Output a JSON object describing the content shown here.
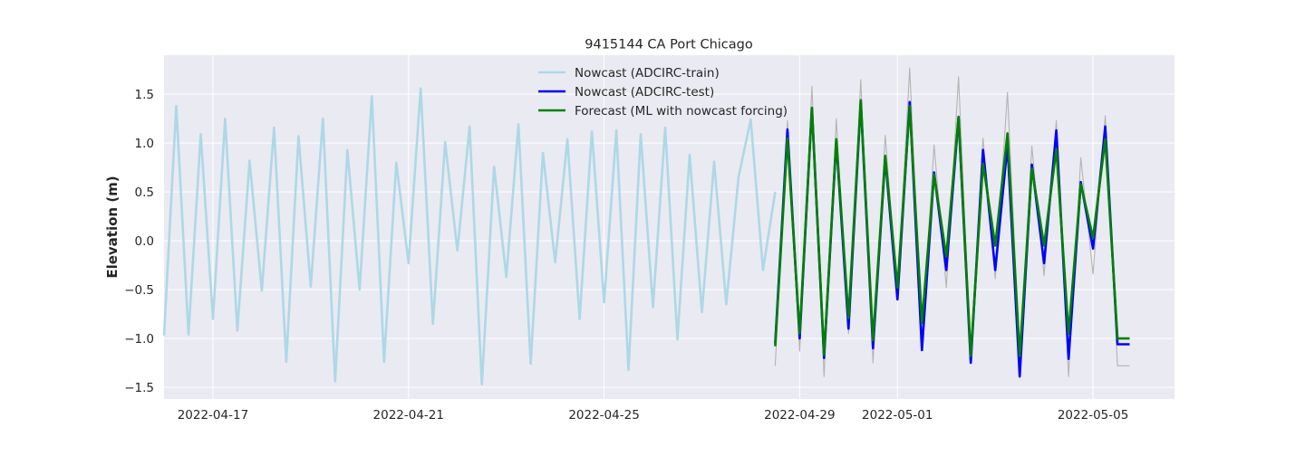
{
  "chart_data": {
    "type": "line",
    "title": "9415144 CA Port Chicago",
    "xlabel": "",
    "ylabel": "Elevation (m)",
    "xlim": [
      "2022-04-16T00:00",
      "2022-05-06T16:00"
    ],
    "ylim": [
      -1.62,
      1.9
    ],
    "grid": true,
    "legend_position": "top-center",
    "x_ticks": [
      "2022-04-17",
      "2022-04-21",
      "2022-04-25",
      "2022-04-29",
      "2022-05-01",
      "2022-05-05"
    ],
    "y_ticks": [
      "−1.5",
      "−1.0",
      "−0.5",
      "0.0",
      "0.5",
      "1.0",
      "1.5"
    ],
    "y_tick_values": [
      -1.5,
      -1.0,
      -0.5,
      0.0,
      0.5,
      1.0,
      1.5
    ],
    "legend": [
      {
        "label": "Nowcast (ADCIRC-train)",
        "color": "#add8e6"
      },
      {
        "label": "Nowcast (ADCIRC-test)",
        "color": "#0000ff"
      },
      {
        "label": "Forecast (ML with nowcast forcing)",
        "color": "#008000"
      }
    ],
    "series": [
      {
        "name": "Nowcast (ADCIRC-train)",
        "color": "#add8e6",
        "x": [
          "2022-04-16T00:00",
          "2022-04-16T06:00",
          "2022-04-16T12:00",
          "2022-04-16T18:00",
          "2022-04-17T00:00",
          "2022-04-17T06:00",
          "2022-04-17T12:00",
          "2022-04-17T18:00",
          "2022-04-18T00:00",
          "2022-04-18T06:00",
          "2022-04-18T12:00",
          "2022-04-18T18:00",
          "2022-04-19T00:00",
          "2022-04-19T06:00",
          "2022-04-19T12:00",
          "2022-04-19T18:00",
          "2022-04-20T00:00",
          "2022-04-20T06:00",
          "2022-04-20T12:00",
          "2022-04-20T18:00",
          "2022-04-21T00:00",
          "2022-04-21T06:00",
          "2022-04-21T12:00",
          "2022-04-21T18:00",
          "2022-04-22T00:00",
          "2022-04-22T06:00",
          "2022-04-22T12:00",
          "2022-04-22T18:00",
          "2022-04-23T00:00",
          "2022-04-23T06:00",
          "2022-04-23T12:00",
          "2022-04-23T18:00",
          "2022-04-24T00:00",
          "2022-04-24T06:00",
          "2022-04-24T12:00",
          "2022-04-24T18:00",
          "2022-04-25T00:00",
          "2022-04-25T06:00",
          "2022-04-25T12:00",
          "2022-04-25T18:00",
          "2022-04-26T00:00",
          "2022-04-26T06:00",
          "2022-04-26T12:00",
          "2022-04-26T18:00",
          "2022-04-27T00:00",
          "2022-04-27T06:00",
          "2022-04-27T12:00",
          "2022-04-27T18:00",
          "2022-04-28T00:00",
          "2022-04-28T06:00",
          "2022-04-28T12:00"
        ],
        "y": [
          -0.97,
          1.38,
          -0.96,
          1.09,
          -0.8,
          1.25,
          -0.92,
          0.82,
          -0.51,
          1.16,
          -1.24,
          1.07,
          -0.47,
          1.25,
          -1.44,
          0.93,
          -0.5,
          1.48,
          -1.24,
          0.8,
          -0.23,
          1.56,
          -0.85,
          1.01,
          -0.1,
          1.17,
          -1.47,
          0.76,
          -0.37,
          1.19,
          -1.26,
          0.9,
          -0.22,
          1.04,
          -0.8,
          1.12,
          -0.63,
          1.13,
          -1.32,
          1.09,
          -0.68,
          1.16,
          -1.01,
          0.88,
          -0.73,
          0.81,
          -0.65,
          0.65,
          1.24,
          -0.3,
          0.5
        ]
      },
      {
        "name": "Nowcast (ADCIRC-test)",
        "color": "#0000ff",
        "x": [
          "2022-04-28T12:00",
          "2022-04-28T18:00",
          "2022-04-29T00:00",
          "2022-04-29T06:00",
          "2022-04-29T12:00",
          "2022-04-29T18:00",
          "2022-04-30T00:00",
          "2022-04-30T06:00",
          "2022-04-30T12:00",
          "2022-04-30T18:00",
          "2022-05-01T00:00",
          "2022-05-01T06:00",
          "2022-05-01T12:00",
          "2022-05-01T18:00",
          "2022-05-02T00:00",
          "2022-05-02T06:00",
          "2022-05-02T12:00",
          "2022-05-02T18:00",
          "2022-05-03T00:00",
          "2022-05-03T06:00",
          "2022-05-03T12:00",
          "2022-05-03T18:00",
          "2022-05-04T00:00",
          "2022-05-04T06:00",
          "2022-05-04T12:00",
          "2022-05-04T18:00",
          "2022-05-05T00:00",
          "2022-05-05T06:00",
          "2022-05-05T12:00",
          "2022-05-05T18:00"
        ],
        "y": [
          -1.05,
          1.14,
          -1.0,
          1.36,
          -1.2,
          1.02,
          -0.9,
          1.42,
          -1.1,
          0.85,
          -0.6,
          1.42,
          -1.12,
          0.7,
          -0.3,
          1.26,
          -1.25,
          0.93,
          -0.3,
          0.98,
          -1.39,
          0.78,
          -0.23,
          1.13,
          -1.21,
          0.6,
          -0.08,
          1.17,
          -1.06,
          -1.06
        ]
      },
      {
        "name": "Forecast (ML with nowcast forcing)",
        "color": "#008000",
        "x": [
          "2022-04-28T12:00",
          "2022-04-28T18:00",
          "2022-04-29T00:00",
          "2022-04-29T06:00",
          "2022-04-29T12:00",
          "2022-04-29T18:00",
          "2022-04-30T00:00",
          "2022-04-30T06:00",
          "2022-04-30T12:00",
          "2022-04-30T18:00",
          "2022-05-01T00:00",
          "2022-05-01T06:00",
          "2022-05-01T12:00",
          "2022-05-01T18:00",
          "2022-05-02T00:00",
          "2022-05-02T06:00",
          "2022-05-02T12:00",
          "2022-05-02T18:00",
          "2022-05-03T00:00",
          "2022-05-03T06:00",
          "2022-05-03T12:00",
          "2022-05-03T18:00",
          "2022-05-04T00:00",
          "2022-05-04T06:00",
          "2022-05-04T12:00",
          "2022-05-04T18:00",
          "2022-05-05T00:00",
          "2022-05-05T06:00",
          "2022-05-05T12:00",
          "2022-05-05T18:00"
        ],
        "y": [
          -1.08,
          1.05,
          -0.95,
          1.36,
          -1.17,
          1.04,
          -0.79,
          1.44,
          -1.02,
          0.87,
          -0.48,
          1.38,
          -0.84,
          0.68,
          -0.16,
          1.27,
          -1.18,
          0.79,
          -0.05,
          1.1,
          -1.18,
          0.74,
          -0.05,
          0.94,
          -0.95,
          0.58,
          0.03,
          1.04,
          -1.0,
          -1.0
        ]
      },
      {
        "name": "",
        "color": "#b4b4b4",
        "x": [
          "2022-04-28T12:00",
          "2022-04-28T18:00",
          "2022-04-29T00:00",
          "2022-04-29T06:00",
          "2022-04-29T12:00",
          "2022-04-29T18:00",
          "2022-04-30T00:00",
          "2022-04-30T06:00",
          "2022-04-30T12:00",
          "2022-04-30T18:00",
          "2022-05-01T00:00",
          "2022-05-01T06:00",
          "2022-05-01T12:00",
          "2022-05-01T18:00",
          "2022-05-02T00:00",
          "2022-05-02T06:00",
          "2022-05-02T12:00",
          "2022-05-02T18:00",
          "2022-05-03T00:00",
          "2022-05-03T06:00",
          "2022-05-03T12:00",
          "2022-05-03T18:00",
          "2022-05-04T00:00",
          "2022-05-04T06:00",
          "2022-05-04T12:00",
          "2022-05-04T18:00",
          "2022-05-05T00:00",
          "2022-05-05T06:00",
          "2022-05-05T12:00",
          "2022-05-05T18:00"
        ],
        "y": [
          -1.28,
          1.23,
          -1.13,
          1.58,
          -1.39,
          1.25,
          -0.95,
          1.65,
          -1.25,
          1.08,
          -0.55,
          1.77,
          -1.02,
          0.98,
          -0.48,
          1.68,
          -1.2,
          1.05,
          -0.39,
          1.52,
          -1.22,
          0.97,
          -0.36,
          1.23,
          -1.39,
          0.85,
          -0.34,
          1.28,
          -1.28,
          -1.28
        ]
      }
    ]
  }
}
